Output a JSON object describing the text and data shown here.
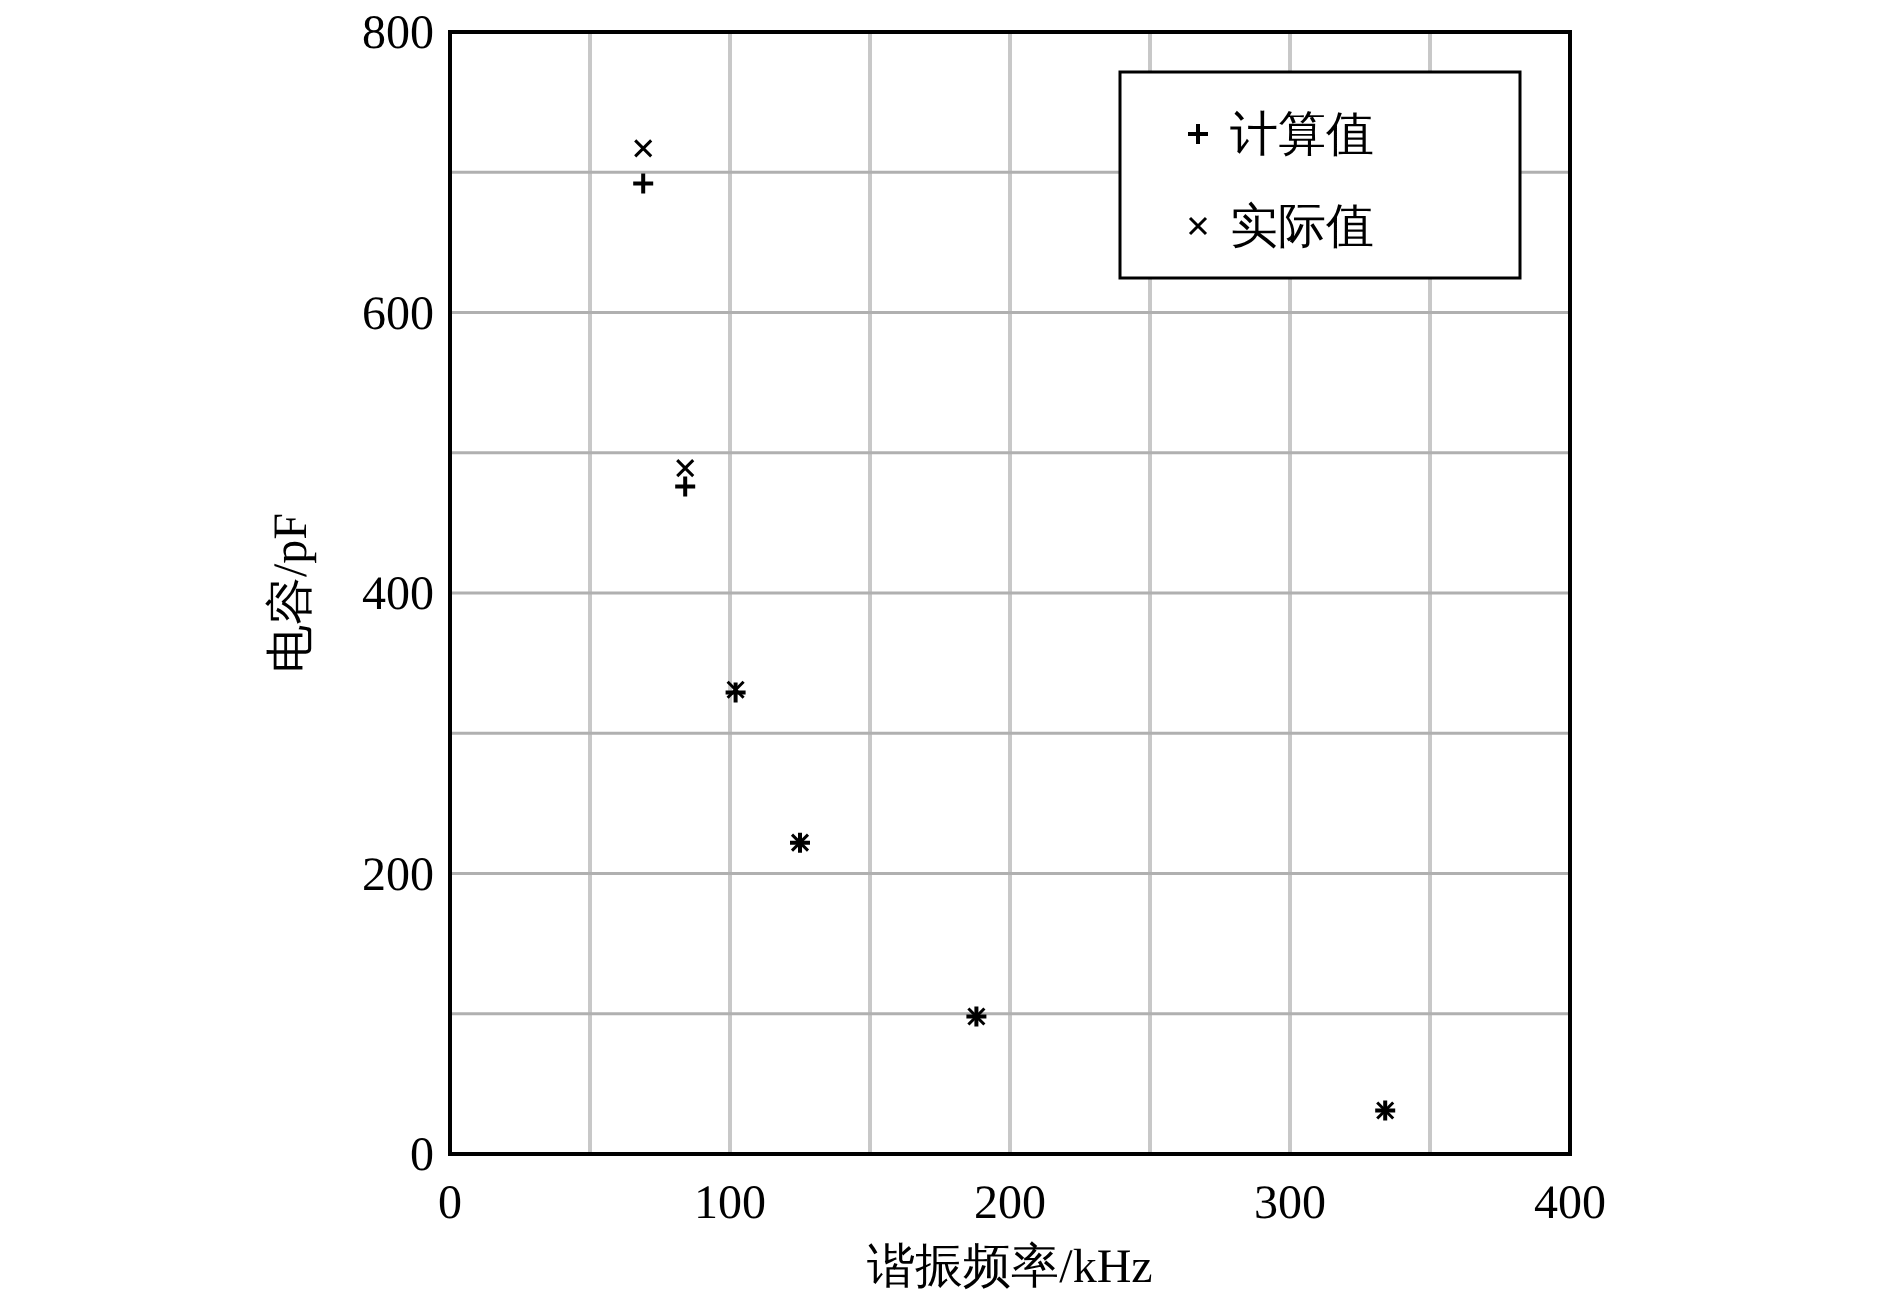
{
  "chart_data": {
    "type": "scatter",
    "xlabel": "谐振频率/kHz",
    "ylabel": "电容/pF",
    "xlim": [
      0,
      400
    ],
    "ylim": [
      0,
      800
    ],
    "xticks": [
      0,
      {
        "value": 50,
        "label": null
      },
      100,
      {
        "value": 150,
        "label": null
      },
      200,
      {
        "value": 250,
        "label": null
      },
      300,
      {
        "value": 350,
        "label": null
      },
      400
    ],
    "yticks": [
      0,
      {
        "value": 100,
        "label": null
      },
      200,
      {
        "value": 300,
        "label": null
      },
      400,
      {
        "value": 500,
        "label": null
      },
      600,
      {
        "value": 700,
        "label": null
      },
      800
    ],
    "grid": true,
    "legend": "top right",
    "series": [
      {
        "name": "计算值",
        "color": "#000000",
        "marker": "plus",
        "x": [
          69,
          84,
          102,
          125,
          188,
          334
        ],
        "values": [
          692,
          476,
          329,
          222,
          98,
          31
        ]
      },
      {
        "name": "实际值",
        "color": "#000000",
        "marker": "cross",
        "x": [
          69,
          84,
          102,
          125,
          188,
          334
        ],
        "values": [
          717,
          489,
          331,
          222,
          98,
          31
        ]
      }
    ]
  }
}
